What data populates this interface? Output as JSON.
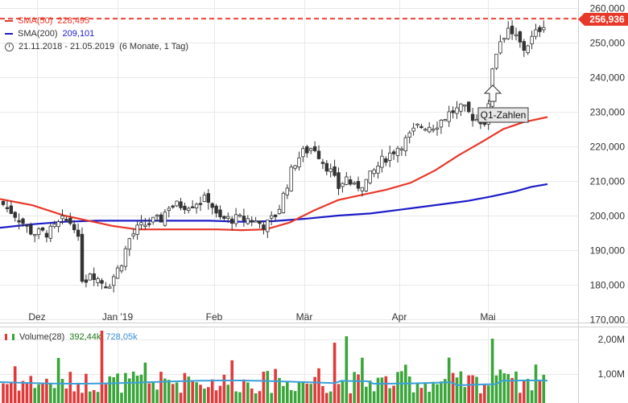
{
  "legend": {
    "sma50_label": "SMA(50)",
    "sma50_value": "228,495",
    "sma200_label": "SMA(200)",
    "sma200_value": "209,101",
    "period": "21.11.2018 - 21.05.2019",
    "period_detail": "(6 Monate, 1 Tag)"
  },
  "volume_legend": {
    "label": "Volume(28)",
    "value1": "392,44k",
    "value2": "728,05k"
  },
  "current_price_label": "256,936",
  "annotation": "Q1-Zahlen",
  "colors": {
    "up": "#ffffff",
    "down": "#333333",
    "sma50": "#e8382a",
    "sma200": "#1c1cc8",
    "vol_up": "#3aa63a",
    "vol_down": "#e03a3a",
    "vol_avg": "#3aa0d8",
    "price_line": "#e8382a"
  },
  "chart_data": {
    "type": "candlestick",
    "x_ticks": [
      "Dez",
      "Jan '19",
      "Feb",
      "Mär",
      "Apr",
      "Mai"
    ],
    "y_ticks": [
      "170,000",
      "180,000",
      "190,000",
      "200,000",
      "210,000",
      "220,000",
      "230,000",
      "240,000",
      "250,000",
      "260,000"
    ],
    "ylim": [
      170,
      260
    ],
    "volume_ticks": [
      "1,00M",
      "2,00M"
    ],
    "current_price": 256.936,
    "grid": true,
    "series_overlay": [
      {
        "name": "SMA(50)"
      },
      {
        "name": "SMA(200)"
      }
    ]
  }
}
